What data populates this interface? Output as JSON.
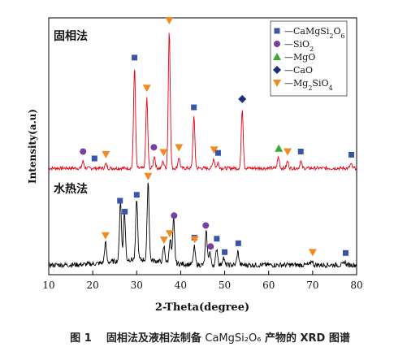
{
  "chart_data": {
    "type": "line",
    "xlabel": "2-Theta(degree)",
    "ylabel": "Intensity(a.u)",
    "xlim": [
      10,
      80
    ],
    "x_ticks": [
      "10",
      "20",
      "30",
      "40",
      "50",
      "60",
      "70",
      "80"
    ],
    "grid": false,
    "legend_position": "top-right",
    "panels": [
      {
        "label": "固相法",
        "color": "#e60012",
        "peaks": [
          {
            "x": 17.8,
            "h": 0.05
          },
          {
            "x": 23.0,
            "h": 0.03
          },
          {
            "x": 29.5,
            "h": 0.73
          },
          {
            "x": 32.3,
            "h": 0.51
          },
          {
            "x": 34.0,
            "h": 0.09
          },
          {
            "x": 36.0,
            "h": 0.05
          },
          {
            "x": 37.4,
            "h": 1.0
          },
          {
            "x": 39.6,
            "h": 0.08
          },
          {
            "x": 43.0,
            "h": 0.37
          },
          {
            "x": 47.5,
            "h": 0.07
          },
          {
            "x": 48.5,
            "h": 0.04
          },
          {
            "x": 54.0,
            "h": 0.43
          },
          {
            "x": 62.2,
            "h": 0.08
          },
          {
            "x": 64.3,
            "h": 0.05
          },
          {
            "x": 67.3,
            "h": 0.05
          },
          {
            "x": 78.7,
            "h": 0.03
          }
        ],
        "markers": [
          {
            "x": 17.8,
            "m": "circle"
          },
          {
            "x": 20.4,
            "m": "square"
          },
          {
            "x": 23.0,
            "m": "triangle-down"
          },
          {
            "x": 29.5,
            "m": "square"
          },
          {
            "x": 32.3,
            "m": "triangle-down"
          },
          {
            "x": 33.9,
            "m": "circle"
          },
          {
            "x": 36.1,
            "m": "triangle-down"
          },
          {
            "x": 37.4,
            "m": "triangle-down"
          },
          {
            "x": 39.6,
            "m": "triangle-down"
          },
          {
            "x": 43.0,
            "m": "square"
          },
          {
            "x": 47.6,
            "m": "triangle-down"
          },
          {
            "x": 48.5,
            "m": "square"
          },
          {
            "x": 54.0,
            "m": "diamond"
          },
          {
            "x": 62.3,
            "m": "triangle-up"
          },
          {
            "x": 64.3,
            "m": "triangle-down"
          },
          {
            "x": 67.3,
            "m": "square"
          },
          {
            "x": 78.8,
            "m": "square"
          }
        ]
      },
      {
        "label": "水热法",
        "color": "#000000",
        "peaks": [
          {
            "x": 22.9,
            "h": 0.18
          },
          {
            "x": 26.3,
            "h": 0.55
          },
          {
            "x": 27.2,
            "h": 0.44
          },
          {
            "x": 30.0,
            "h": 0.55
          },
          {
            "x": 32.6,
            "h": 0.72
          },
          {
            "x": 36.2,
            "h": 0.14
          },
          {
            "x": 37.6,
            "h": 0.22
          },
          {
            "x": 38.4,
            "h": 0.4
          },
          {
            "x": 43.1,
            "h": 0.16
          },
          {
            "x": 45.8,
            "h": 0.3
          },
          {
            "x": 46.6,
            "h": 0.12
          },
          {
            "x": 48.2,
            "h": 0.15
          },
          {
            "x": 49.7,
            "h": 0.07
          },
          {
            "x": 53.0,
            "h": 0.12
          },
          {
            "x": 69.8,
            "h": 0.04
          },
          {
            "x": 77.3,
            "h": 0.03
          }
        ],
        "markers": [
          {
            "x": 22.9,
            "m": "triangle-down"
          },
          {
            "x": 26.2,
            "m": "square"
          },
          {
            "x": 27.3,
            "m": "square"
          },
          {
            "x": 30.0,
            "m": "square"
          },
          {
            "x": 32.6,
            "m": "triangle-down"
          },
          {
            "x": 36.2,
            "m": "triangle-down"
          },
          {
            "x": 37.5,
            "m": "triangle-down"
          },
          {
            "x": 38.5,
            "m": "circle"
          },
          {
            "x": 43.1,
            "m": "square"
          },
          {
            "x": 43.2,
            "m": "triangle-down"
          },
          {
            "x": 45.7,
            "m": "circle"
          },
          {
            "x": 46.8,
            "m": "circle"
          },
          {
            "x": 48.2,
            "m": "square"
          },
          {
            "x": 50.0,
            "m": "square"
          },
          {
            "x": 53.1,
            "m": "square"
          },
          {
            "x": 70.0,
            "m": "triangle-down"
          },
          {
            "x": 77.5,
            "m": "square"
          }
        ]
      }
    ],
    "legend": [
      {
        "marker": "square",
        "color": "#3a55a4",
        "prefix": "—",
        "text": "CaMgSi",
        "sub1": "2",
        "mid": "O",
        "sub2": "6"
      },
      {
        "marker": "circle",
        "color": "#7b3fa0",
        "prefix": "—",
        "text": "SiO",
        "sub1": "2",
        "mid": "",
        "sub2": ""
      },
      {
        "marker": "triangle-up",
        "color": "#3aa935",
        "prefix": "—",
        "text": "MgO",
        "sub1": "",
        "mid": "",
        "sub2": ""
      },
      {
        "marker": "diamond",
        "color": "#1d2f7a",
        "prefix": "—",
        "text": "CaO",
        "sub1": "",
        "mid": "",
        "sub2": ""
      },
      {
        "marker": "triangle-down",
        "color": "#f08a24",
        "prefix": "—",
        "text": "Mg",
        "sub1": "2",
        "mid": "SiO",
        "sub2": "4"
      }
    ]
  },
  "caption": {
    "prefix": "图 1",
    "text_a": "固相法及液相法制备 ",
    "formula": "CaMgSi₂O₆",
    "text_b": " 产物的 XRD 图谱"
  }
}
